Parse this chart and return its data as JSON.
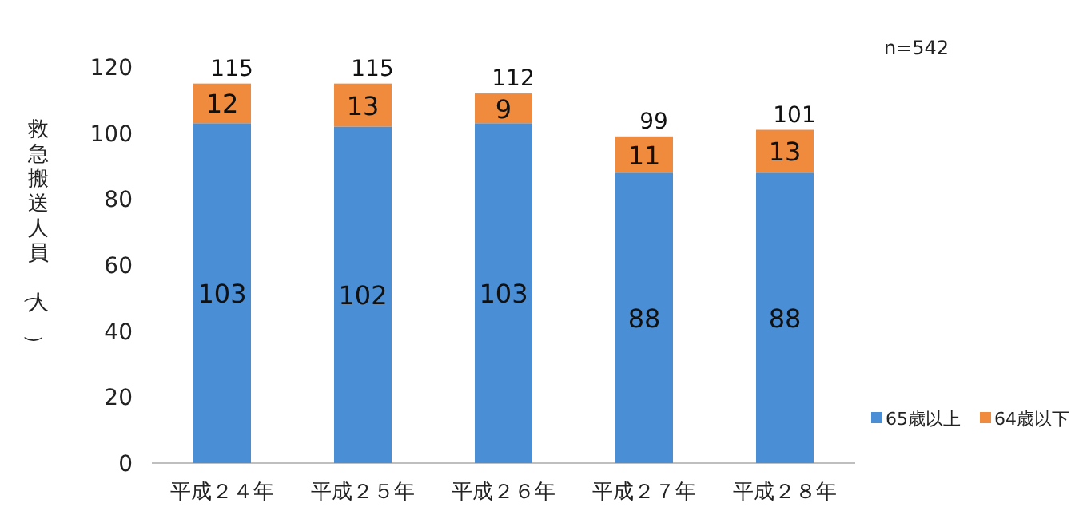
{
  "chart_data": {
    "type": "bar",
    "stacked": true,
    "categories": [
      "平成２４年",
      "平成２５年",
      "平成２６年",
      "平成２７年",
      "平成２８年"
    ],
    "series": [
      {
        "name": "65歳以上",
        "color": "#4a8fd6",
        "values": [
          103,
          102,
          103,
          88,
          88
        ]
      },
      {
        "name": "64歳以下",
        "color": "#f08a3c",
        "values": [
          12,
          13,
          9,
          11,
          13
        ]
      }
    ],
    "totals": [
      "115",
      "115",
      "112",
      "99",
      "101"
    ],
    "ylabel": "救急搬送人員（人）",
    "ylim": [
      0,
      120
    ],
    "yticks": [
      0,
      20,
      40,
      60,
      80,
      100,
      120
    ],
    "annotations": [
      "n=542"
    ],
    "data_labels": true,
    "legend": "bottom right",
    "grid": false
  }
}
